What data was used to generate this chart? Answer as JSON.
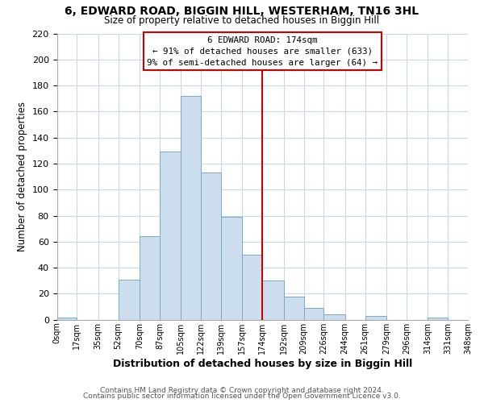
{
  "title": "6, EDWARD ROAD, BIGGIN HILL, WESTERHAM, TN16 3HL",
  "subtitle": "Size of property relative to detached houses in Biggin Hill",
  "xlabel": "Distribution of detached houses by size in Biggin Hill",
  "ylabel": "Number of detached properties",
  "bar_color": "#ccdded",
  "bar_edge_color": "#7aaac8",
  "vline_x": 174,
  "vline_color": "#cc0000",
  "annotation_title": "6 EDWARD ROAD: 174sqm",
  "annotation_line1": "← 91% of detached houses are smaller (633)",
  "annotation_line2": "9% of semi-detached houses are larger (64) →",
  "annotation_box_color": "#cc0000",
  "bins": [
    0,
    17,
    35,
    52,
    70,
    87,
    105,
    122,
    139,
    157,
    174,
    192,
    209,
    226,
    244,
    261,
    279,
    296,
    314,
    331,
    348
  ],
  "counts": [
    2,
    0,
    0,
    31,
    64,
    129,
    172,
    113,
    79,
    50,
    30,
    18,
    9,
    4,
    0,
    3,
    0,
    0,
    2,
    0
  ],
  "ylim": [
    0,
    220
  ],
  "yticks": [
    0,
    20,
    40,
    60,
    80,
    100,
    120,
    140,
    160,
    180,
    200,
    220
  ],
  "xtick_labels": [
    "0sqm",
    "17sqm",
    "35sqm",
    "52sqm",
    "70sqm",
    "87sqm",
    "105sqm",
    "122sqm",
    "139sqm",
    "157sqm",
    "174sqm",
    "192sqm",
    "209sqm",
    "226sqm",
    "244sqm",
    "261sqm",
    "279sqm",
    "296sqm",
    "314sqm",
    "331sqm",
    "348sqm"
  ],
  "footer1": "Contains HM Land Registry data © Crown copyright and database right 2024.",
  "footer2": "Contains public sector information licensed under the Open Government Licence v3.0.",
  "background_color": "#ffffff",
  "grid_color": "#c8d8e8"
}
